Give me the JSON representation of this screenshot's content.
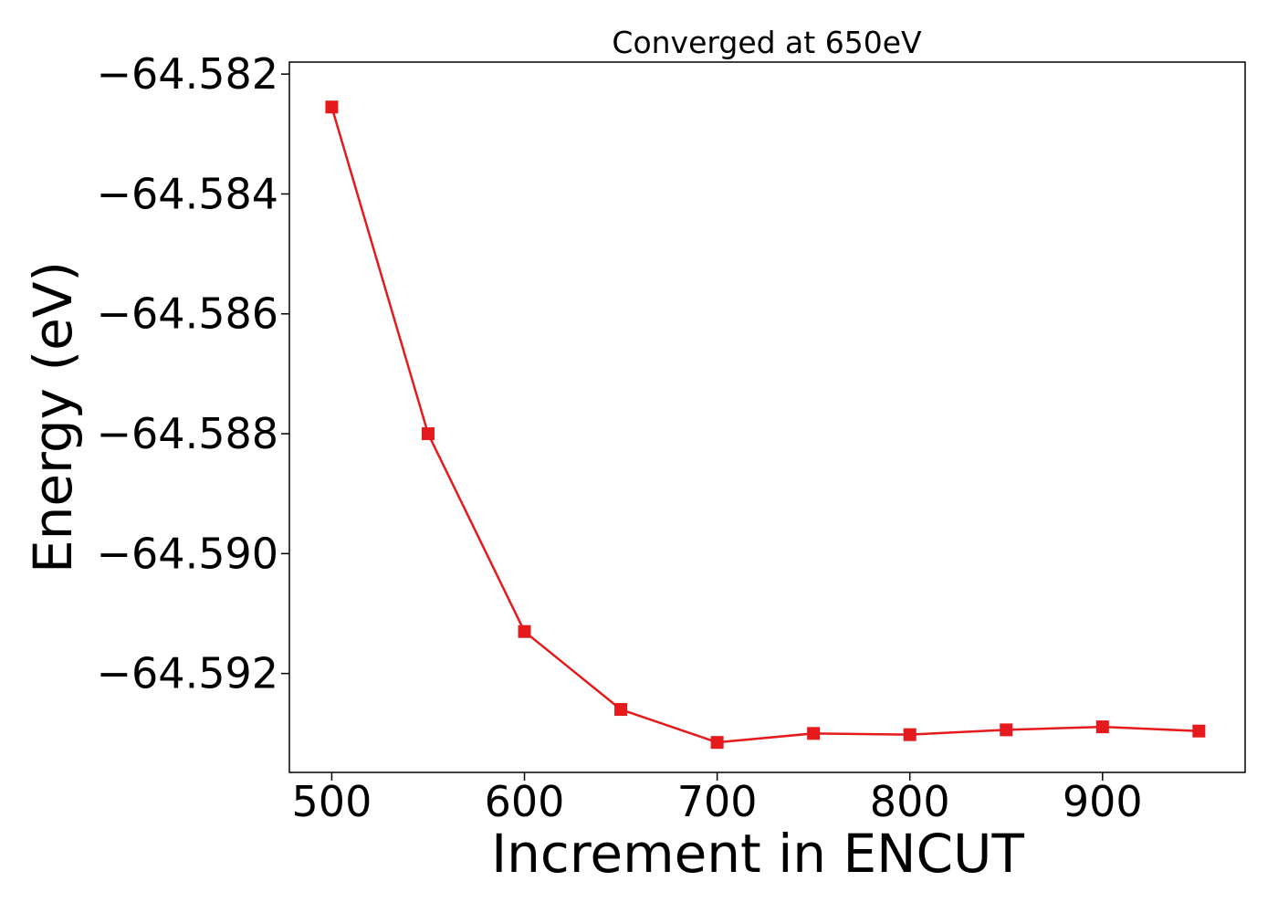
{
  "chart_data": {
    "type": "line",
    "title": "Converged at 650eV",
    "xlabel": "Increment in ENCUT",
    "ylabel": "Energy (eV)",
    "x": [
      500,
      550,
      600,
      650,
      700,
      750,
      800,
      850,
      900,
      950
    ],
    "series": [
      {
        "color": "#e41a1c",
        "marker": "square",
        "values": [
          -64.58255,
          -64.588,
          -64.5913,
          -64.5926,
          -64.59315,
          -64.593,
          -64.59302,
          -64.59294,
          -64.59289,
          -64.59296
        ]
      }
    ],
    "xlim": [
      478,
      974
    ],
    "ylim": [
      -64.59365,
      -64.5818
    ],
    "xticks": [
      500,
      600,
      700,
      800,
      900
    ],
    "xtick_labels": [
      "500",
      "600",
      "700",
      "800",
      "900"
    ],
    "yticks": [
      -64.582,
      -64.584,
      -64.586,
      -64.588,
      -64.59,
      -64.592
    ],
    "ytick_labels": [
      "−64.582",
      "−64.584",
      "−64.586",
      "−64.588",
      "−64.590",
      "−64.592"
    ],
    "grid": false,
    "legend": "none"
  }
}
